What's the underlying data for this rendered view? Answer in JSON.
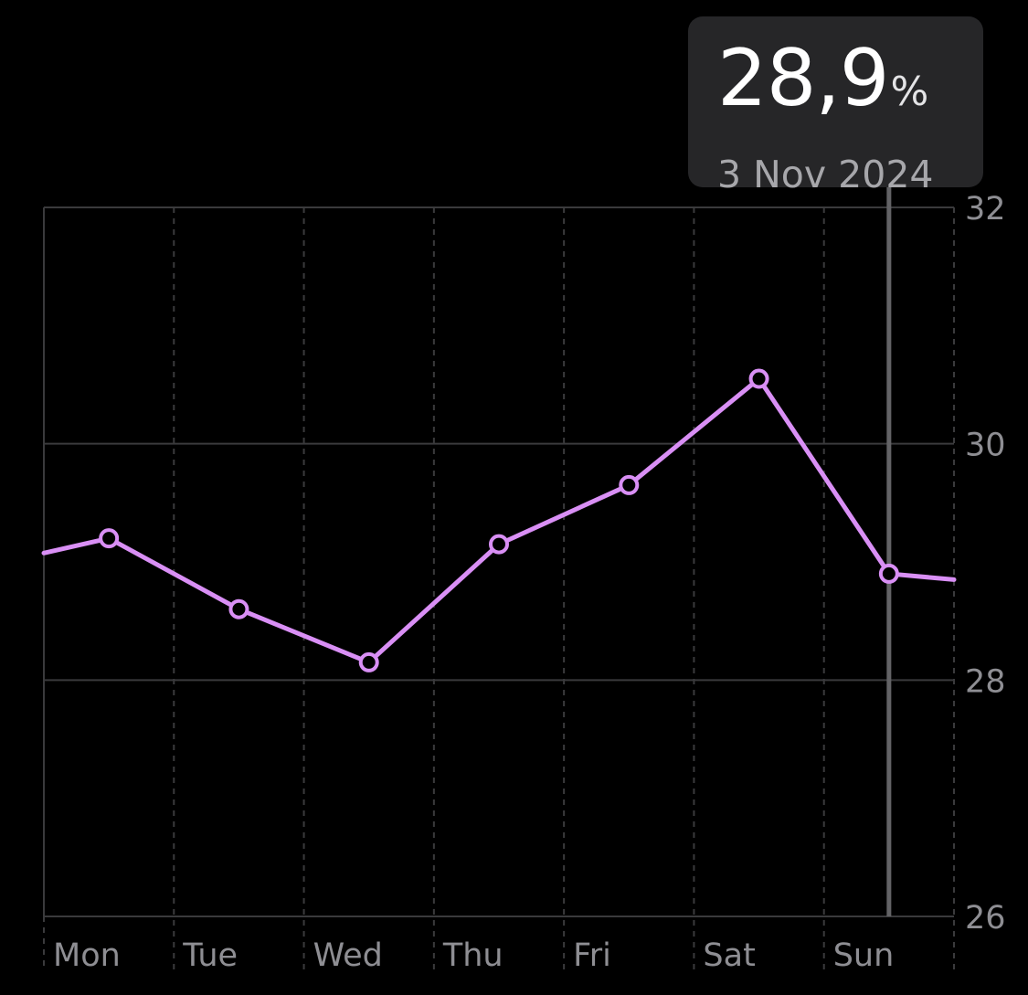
{
  "colors": {
    "background": "#000000",
    "line": "#d98ff5",
    "grid": "#3a3a3c",
    "axis_text": "#8e8e93",
    "selection_rule": "#636366",
    "tooltip_bg": "#262628"
  },
  "tooltip": {
    "value": "28,9",
    "unit": "%",
    "date": "3 Nov 2024"
  },
  "chart_data": {
    "type": "line",
    "x_ticks": [
      "Mon",
      "Tue",
      "Wed",
      "Thu",
      "Fri",
      "Sat",
      "Sun"
    ],
    "y_ticks": [
      "26",
      "28",
      "30",
      "32"
    ],
    "ylim": [
      26,
      32
    ],
    "grid": true,
    "y_axis_side": "right",
    "series": [
      {
        "points": [
          {
            "x": "Mon",
            "y": 29.2
          },
          {
            "x": "Tue",
            "y": 28.6
          },
          {
            "x": "Wed",
            "y": 28.15
          },
          {
            "x": "Thu",
            "y": 29.15
          },
          {
            "x": "Fri",
            "y": 29.65
          },
          {
            "x": "Sat",
            "y": 30.55
          },
          {
            "x": "Sun",
            "y": 28.9
          }
        ],
        "continues_left_to": 28.95,
        "continues_right_to": 28.8
      }
    ],
    "selected": {
      "x": "Sun",
      "y": 28.9
    }
  }
}
